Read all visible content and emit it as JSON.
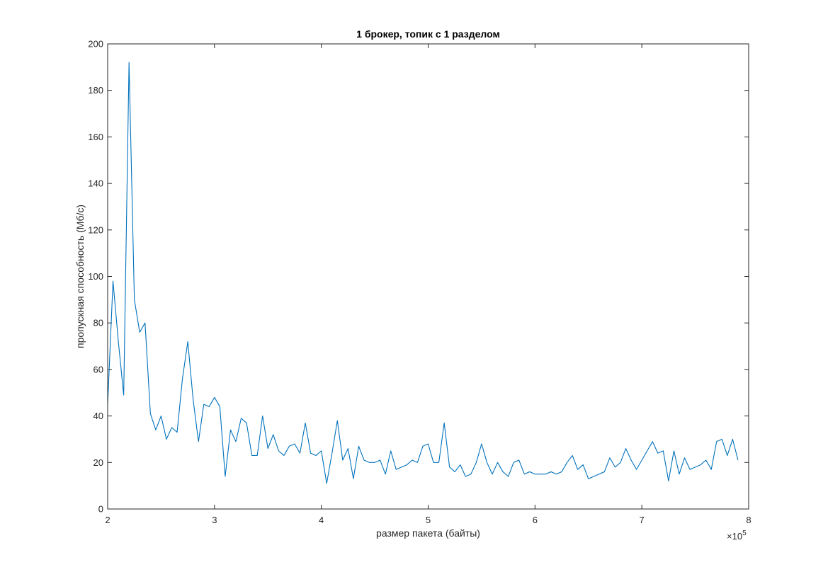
{
  "chart_data": {
    "type": "line",
    "title": "1 брокер, топик с 1 разделом",
    "xlabel": "размер пакета (байты)",
    "ylabel": "пропускная способность (Мб/с)",
    "x_exponent_label": "×10",
    "x_exponent_power": "5",
    "xlim": [
      2,
      8
    ],
    "ylim": [
      0,
      200
    ],
    "x_ticks": [
      2,
      3,
      4,
      5,
      6,
      7,
      8
    ],
    "x_tick_labels": [
      "2",
      "3",
      "4",
      "5",
      "6",
      "7",
      "8"
    ],
    "y_ticks": [
      0,
      20,
      40,
      60,
      80,
      100,
      120,
      140,
      160,
      180,
      200
    ],
    "y_tick_labels": [
      "0",
      "20",
      "40",
      "60",
      "80",
      "100",
      "120",
      "140",
      "160",
      "180",
      "200"
    ],
    "grid": false,
    "series_color": "#0072bd",
    "x_step": 0.05,
    "x_start": 2.0,
    "series": [
      {
        "values": [
          45,
          98,
          72,
          49,
          192,
          90,
          76,
          80,
          41,
          34,
          40,
          30,
          35,
          33,
          56,
          72,
          47,
          29,
          45,
          44,
          48,
          44,
          14,
          34,
          29,
          39,
          37,
          23,
          23,
          40,
          26,
          32,
          25,
          23,
          27,
          28,
          24,
          37,
          24,
          23,
          25,
          11,
          24,
          38,
          21,
          26,
          13,
          27,
          21,
          20,
          20,
          21,
          15,
          25,
          17,
          18,
          19,
          21,
          20,
          27,
          28,
          20,
          20,
          37,
          18,
          16,
          19,
          14,
          15,
          20,
          28,
          20,
          15,
          20,
          16,
          14,
          20,
          21,
          15,
          16,
          15,
          15,
          15,
          16,
          15,
          16,
          20,
          23,
          17,
          19,
          13,
          14,
          15,
          16,
          22,
          18,
          20,
          26,
          21,
          17,
          21,
          25,
          29,
          24,
          25,
          12,
          25,
          15,
          22,
          17,
          18,
          19,
          21,
          17,
          29,
          30,
          23,
          30,
          21
        ]
      }
    ]
  }
}
